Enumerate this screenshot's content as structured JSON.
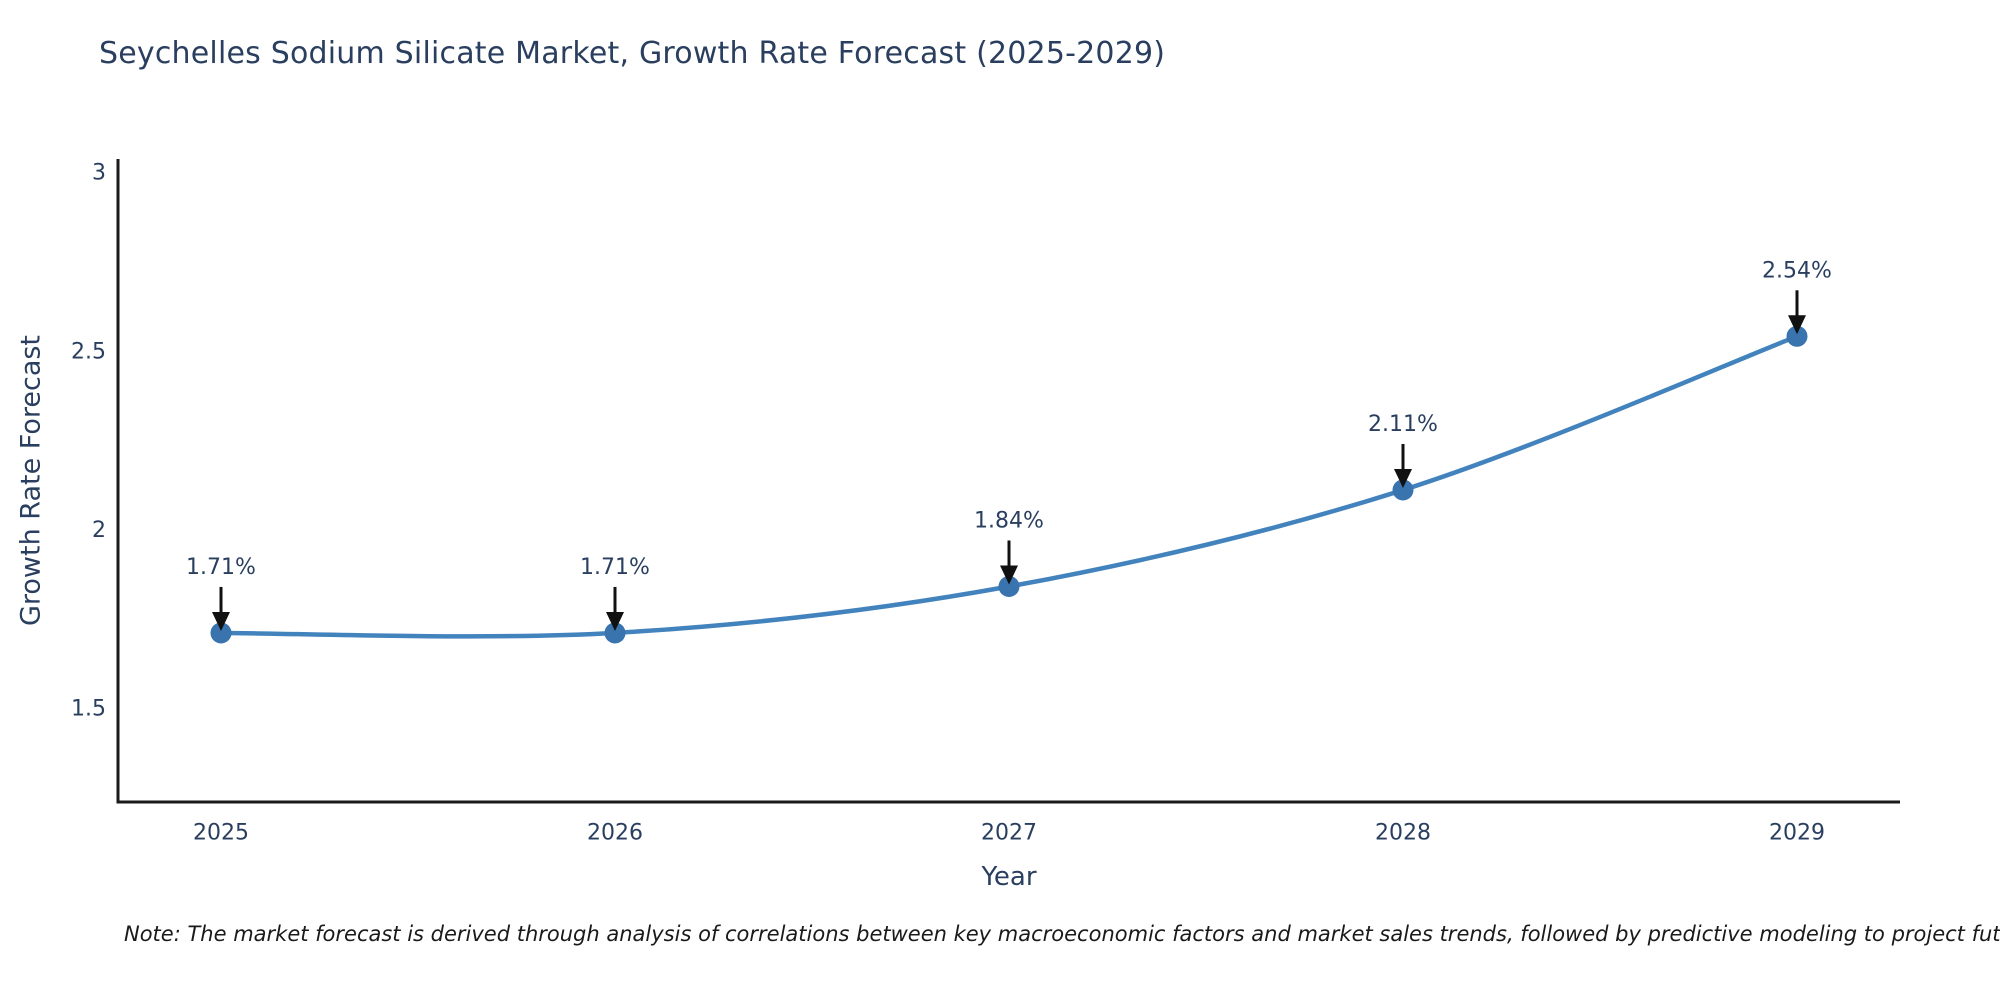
{
  "title": "Seychelles Sodium Silicate Market, Growth Rate Forecast (2025-2029)",
  "note": "Note: The market forecast is derived through analysis of correlations between key macroeconomic factors and market sales trends, followed by predictive modeling to project future sales",
  "chart_data": {
    "type": "line",
    "title": "Seychelles Sodium Silicate Market, Growth Rate Forecast (2025-2029)",
    "x": [
      "2025",
      "2026",
      "2027",
      "2028",
      "2029"
    ],
    "series": [
      {
        "name": "Growth Rate Forecast",
        "values": [
          1.71,
          1.71,
          1.84,
          2.11,
          2.54
        ]
      }
    ],
    "point_labels": [
      "1.71%",
      "1.71%",
      "1.84%",
      "2.11%",
      "2.54%"
    ],
    "xlabel": "Year",
    "ylabel": "Growth Rate Forecast",
    "yticks": [
      1.5,
      2,
      2.5,
      3
    ],
    "ylim": [
      1.237,
      3.036
    ],
    "line_shape": "spline",
    "grid": false,
    "legend_visible": false,
    "annotations_have_arrows": true,
    "colors": {
      "line": "#4383bd",
      "marker": "#3974ae",
      "axis_line": "#1a1a1a",
      "tick_text": "#2a3f5f",
      "title_text": "#2a3f5f",
      "annotation_text": "#2a3f5f",
      "annotation_arrow": "#111111",
      "background": "#ffffff"
    }
  }
}
